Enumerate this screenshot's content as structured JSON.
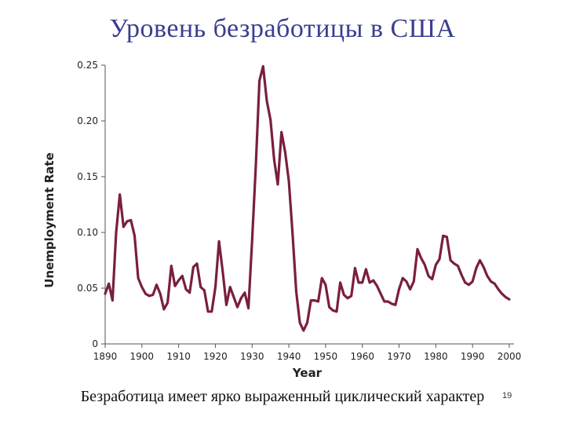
{
  "slide": {
    "title": "Уровень безработицы в США",
    "caption": "Безработица имеет ярко выраженный циклический характер",
    "number": "19"
  },
  "chart_data": {
    "type": "line",
    "title": "",
    "xlabel": "Year",
    "ylabel": "Unemployment Rate",
    "xlim": [
      1890,
      2000
    ],
    "ylim": [
      0,
      0.25
    ],
    "x_ticks": [
      "1890",
      "1900",
      "1910",
      "1920",
      "1930",
      "1940",
      "1950",
      "1960",
      "1970",
      "1980",
      "1990",
      "2000"
    ],
    "y_ticks": [
      "0",
      "0.05",
      "0.10",
      "0.15",
      "0.20",
      "0.25"
    ],
    "grid": false,
    "line_color": "#7a1f3d",
    "series": [
      {
        "name": "",
        "x": [
          1890,
          1891,
          1892,
          1893,
          1894,
          1895,
          1896,
          1897,
          1898,
          1899,
          1900,
          1901,
          1902,
          1903,
          1904,
          1905,
          1906,
          1907,
          1908,
          1909,
          1910,
          1911,
          1912,
          1913,
          1914,
          1915,
          1916,
          1917,
          1918,
          1919,
          1920,
          1921,
          1922,
          1923,
          1924,
          1925,
          1926,
          1927,
          1928,
          1929,
          1930,
          1931,
          1932,
          1933,
          1934,
          1935,
          1936,
          1937,
          1938,
          1939,
          1940,
          1941,
          1942,
          1943,
          1944,
          1945,
          1946,
          1947,
          1948,
          1949,
          1950,
          1951,
          1952,
          1953,
          1954,
          1955,
          1956,
          1957,
          1958,
          1959,
          1960,
          1961,
          1962,
          1963,
          1964,
          1965,
          1966,
          1967,
          1968,
          1969,
          1970,
          1971,
          1972,
          1973,
          1974,
          1975,
          1976,
          1977,
          1978,
          1979,
          1980,
          1981,
          1982,
          1983,
          1984,
          1985,
          1986,
          1987,
          1988,
          1989,
          1990,
          1991,
          1992,
          1993,
          1994,
          1995,
          1996,
          1997,
          1998,
          1999,
          2000
        ],
        "values": [
          0.045,
          0.054,
          0.039,
          0.1,
          0.134,
          0.105,
          0.11,
          0.111,
          0.097,
          0.059,
          0.051,
          0.045,
          0.043,
          0.044,
          0.053,
          0.045,
          0.031,
          0.037,
          0.07,
          0.052,
          0.057,
          0.061,
          0.049,
          0.046,
          0.069,
          0.072,
          0.051,
          0.048,
          0.029,
          0.029,
          0.051,
          0.092,
          0.065,
          0.035,
          0.051,
          0.042,
          0.033,
          0.041,
          0.046,
          0.032,
          0.093,
          0.16,
          0.236,
          0.249,
          0.218,
          0.201,
          0.165,
          0.143,
          0.19,
          0.172,
          0.146,
          0.099,
          0.047,
          0.019,
          0.012,
          0.019,
          0.039,
          0.039,
          0.038,
          0.059,
          0.053,
          0.033,
          0.03,
          0.029,
          0.055,
          0.044,
          0.041,
          0.043,
          0.068,
          0.055,
          0.055,
          0.067,
          0.055,
          0.057,
          0.052,
          0.045,
          0.038,
          0.038,
          0.036,
          0.035,
          0.049,
          0.059,
          0.056,
          0.049,
          0.056,
          0.085,
          0.077,
          0.071,
          0.061,
          0.058,
          0.071,
          0.076,
          0.097,
          0.096,
          0.075,
          0.072,
          0.07,
          0.062,
          0.055,
          0.053,
          0.056,
          0.068,
          0.075,
          0.069,
          0.061,
          0.056,
          0.054,
          0.049,
          0.045,
          0.042,
          0.04
        ]
      }
    ]
  }
}
